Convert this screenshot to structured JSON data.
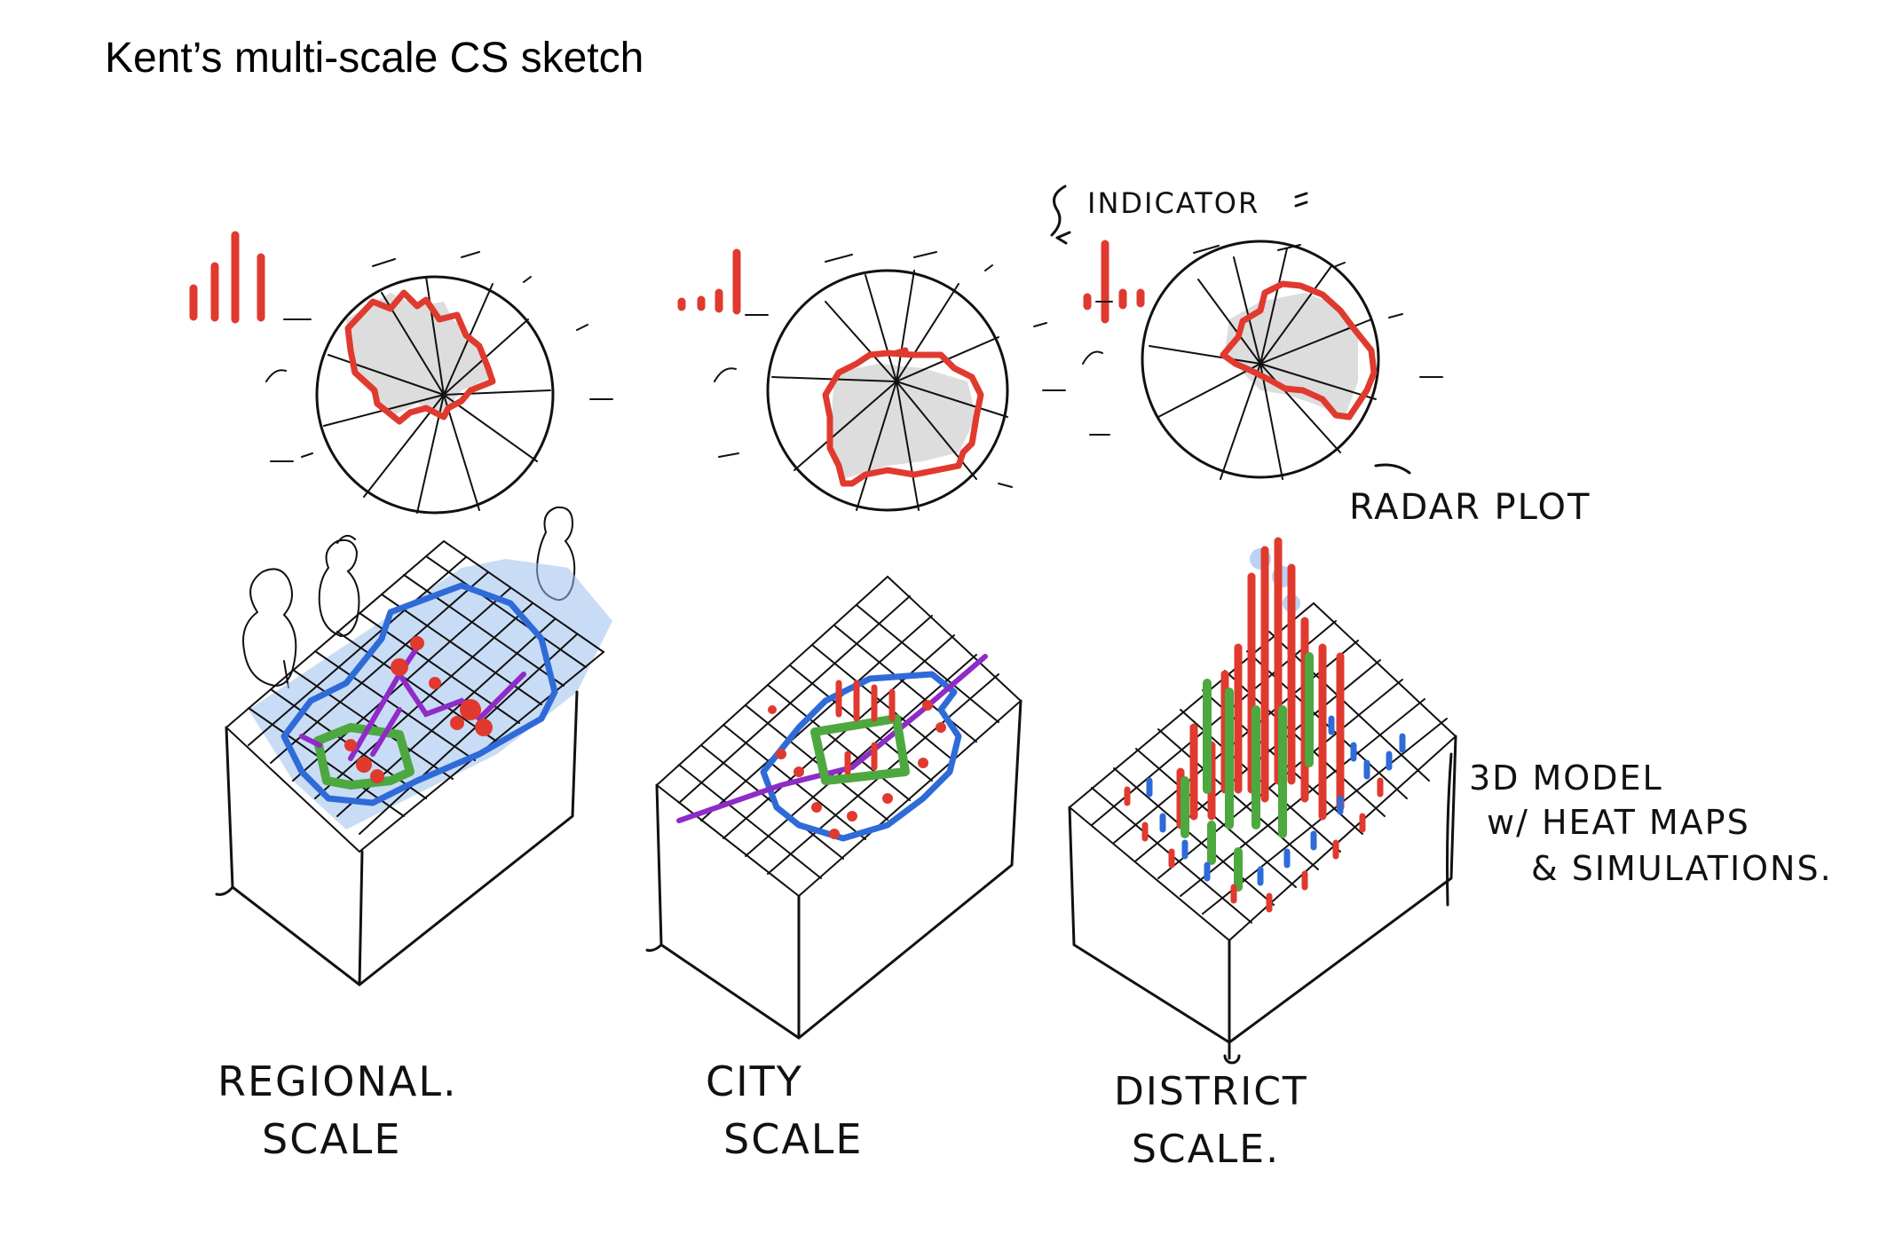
{
  "title": "Kent’s multi-scale CS sketch",
  "annotations": {
    "indicator": "INDICATOR",
    "radar_plot": "RADAR PLOT",
    "model_line1": "3D MODEL",
    "model_line2": "w/ HEAT MAPS",
    "model_line3": "& SIMULATIONS."
  },
  "scales": [
    {
      "line1": "REGIONAL.",
      "line2": "SCALE"
    },
    {
      "line1": "CITY",
      "line2": "SCALE"
    },
    {
      "line1": "DISTRICT",
      "line2": "SCALE."
    }
  ],
  "colors": {
    "red": "#e03a2f",
    "blue": "#2f6bd8",
    "light_blue": "#9cc0ef",
    "green": "#4da840",
    "purple": "#8f2bc7",
    "radar_fill": "#d9d9d9"
  }
}
